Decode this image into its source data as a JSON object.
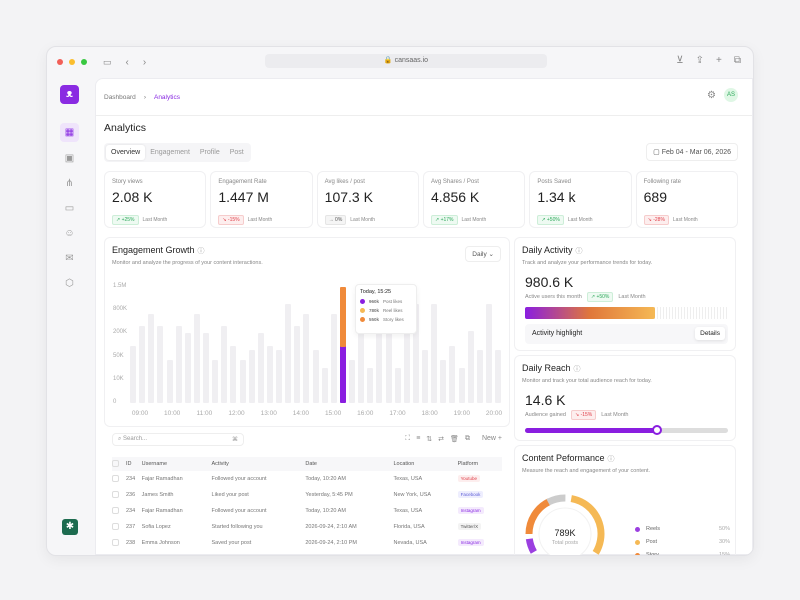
{
  "browser": {
    "url": "cansaas.io"
  },
  "breadcrumb": {
    "parent": "Dashboard",
    "current": "Analytics"
  },
  "user": {
    "initials": "AS"
  },
  "page_title": "Analytics",
  "tabs": [
    "Overview",
    "Engagement",
    "Profile",
    "Post"
  ],
  "date_range": "Feb 04 - Mar 06, 2026",
  "kpis": [
    {
      "label": "Story views",
      "value": "2.08 K",
      "change": "↗ +25%",
      "trend": "up",
      "period": "Last Month"
    },
    {
      "label": "Engagement Rate",
      "value": "1.447 M",
      "change": "↘ -15%",
      "trend": "dn",
      "period": "Last Month"
    },
    {
      "label": "Avg likes / post",
      "value": "107.3 K",
      "change": "→ 0%",
      "trend": "nu",
      "period": "Last Month"
    },
    {
      "label": "Avg Shares / Post",
      "value": "4.856 K",
      "change": "↗ +17%",
      "trend": "up",
      "period": "Last Month"
    },
    {
      "label": "Posts Saved",
      "value": "1.34 k",
      "change": "↗ +50%",
      "trend": "up",
      "period": "Last Month"
    },
    {
      "label": "Following rate",
      "value": "689",
      "change": "↘ -28%",
      "trend": "dn",
      "period": "Last Month"
    }
  ],
  "engagement": {
    "title": "Engagement Growth",
    "subtitle": "Monitor and analyze the progress of your content interactions.",
    "period": "Daily"
  },
  "chart_data": {
    "type": "bar",
    "yticks": [
      "1.5M",
      "800K",
      "200K",
      "50K",
      "10K",
      "0"
    ],
    "ytick_values": [
      1500000,
      800000,
      200000,
      50000,
      10000,
      0
    ],
    "xticks": [
      "09:00",
      "10:00",
      "11:00",
      "12:00",
      "13:00",
      "14:00",
      "15:00",
      "16:00",
      "17:00",
      "18:00",
      "19:00",
      "20:00"
    ],
    "values": [
      120000,
      400000,
      700000,
      400000,
      45000,
      400000,
      200000,
      700000,
      200000,
      45000,
      400000,
      120000,
      45000,
      90000,
      200000,
      120000,
      90000,
      1000000,
      400000,
      700000,
      90000,
      30000,
      700000,
      null,
      45000,
      300000,
      30000,
      400000,
      400000,
      30000,
      400000,
      1000000,
      90000,
      1000000,
      45000,
      120000,
      30000,
      250000,
      90000,
      1000000,
      90000
    ],
    "highlight": {
      "label": "Today, 15:25",
      "series": [
        {
          "name": "Post likes",
          "value": "960k",
          "color": "#8a1ee0"
        },
        {
          "name": "Reel likes",
          "value": "780k",
          "color": "#f5b955"
        },
        {
          "name": "Story likes",
          "value": "550k",
          "color": "#f08a3a"
        }
      ]
    }
  },
  "table": {
    "search_placeholder": "Search...",
    "shortcut": "⌘",
    "new_label": "New",
    "columns": [
      "ID",
      "Username",
      "Activity",
      "Date",
      "Location",
      "Platform"
    ],
    "rows": [
      [
        "234",
        "Fajar Ramadhan",
        "Followed your account",
        "Today, 10:20 AM",
        "Texas, USA",
        "Youtube"
      ],
      [
        "236",
        "James Smith",
        "Liked your post",
        "Yesterday, 5:45 PM",
        "New York, USA",
        "Facebook"
      ],
      [
        "234",
        "Fajar Ramadhan",
        "Followed your account",
        "Today, 10:20 AM",
        "Texas, USA",
        "Instagram"
      ],
      [
        "237",
        "Sofia Lopez",
        "Started following you",
        "2026-09-24, 2:10 AM",
        "Florida, USA",
        "Twitter/X"
      ],
      [
        "238",
        "Emma Johnson",
        "Saved your post",
        "2026-09-24, 2:10 PM",
        "Nevada, USA",
        "Instagram"
      ]
    ]
  },
  "daily_activity": {
    "title": "Daily Activity",
    "subtitle": "Track and analyze your performance trends for today.",
    "value": "980.6 K",
    "caption": "Active users this month",
    "change": "↗ +50%",
    "period": "Last Month",
    "progress_pct": 64,
    "highlight": "Activity highlight",
    "details": "Details"
  },
  "daily_reach": {
    "title": "Daily Reach",
    "subtitle": "Monitor and track your total audience reach for today.",
    "value": "14.6 K",
    "caption": "Audience gained",
    "change": "↘ -15%",
    "period": "Last Month",
    "slider_pct": 65
  },
  "content": {
    "title": "Content Peformance",
    "subtitle": "Measure the reach and engagement of your content.",
    "total": "789K",
    "total_label": "Total posts",
    "legend": [
      {
        "name": "Reels",
        "pct": "50%",
        "color": "#9b3fe0"
      },
      {
        "name": "Post",
        "pct": "30%",
        "color": "#f5b955"
      },
      {
        "name": "Story",
        "pct": "15%",
        "color": "#f08a3a"
      }
    ]
  }
}
